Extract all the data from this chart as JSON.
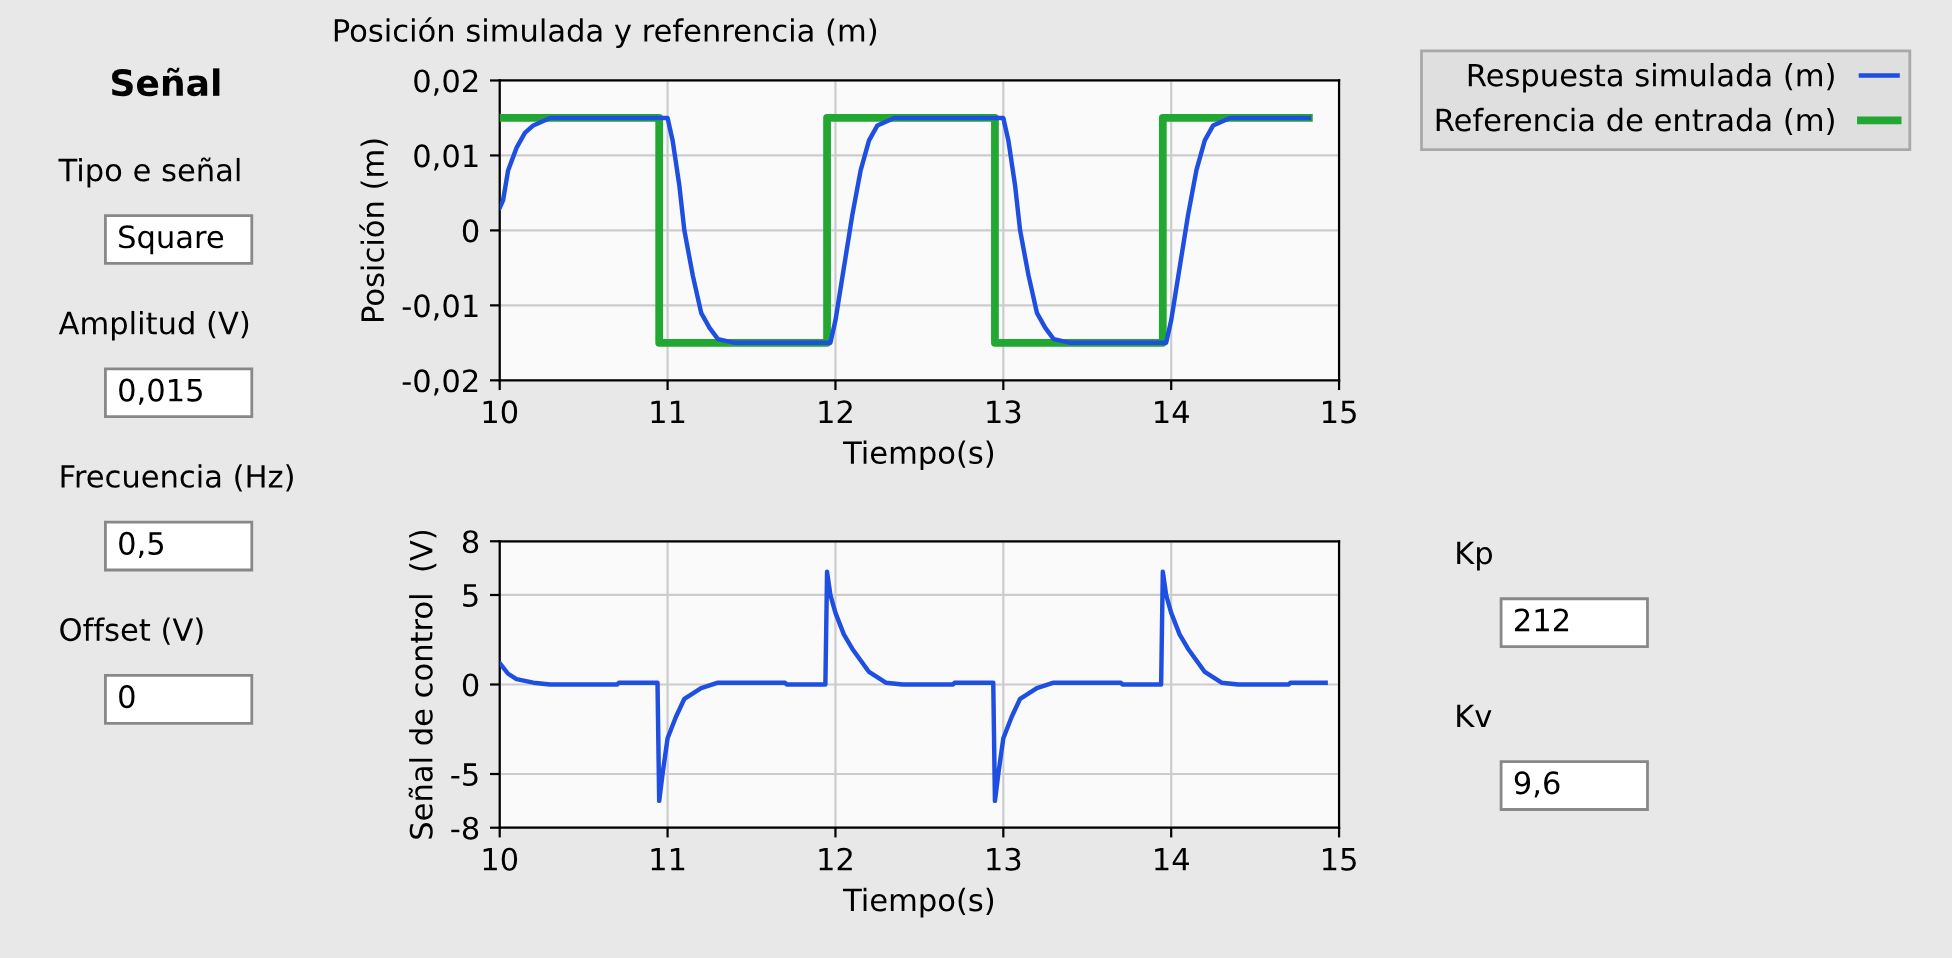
{
  "chart_data": [
    {
      "type": "line",
      "title": "Posición simulada y refenrencia (m)",
      "xlabel": "Tiempo(s)",
      "ylabel": "Posición (m)",
      "xlim": [
        10,
        15
      ],
      "xticks": [
        10,
        11,
        12,
        13,
        14,
        15
      ],
      "ylim": [
        -0.02,
        0.02
      ],
      "yticks": [
        {
          "value": -0.02,
          "label": "-0,02"
        },
        {
          "value": -0.01,
          "label": "-0,01"
        },
        {
          "value": 0,
          "label": "0"
        },
        {
          "value": 0.01,
          "label": "0,01"
        },
        {
          "value": 0.02,
          "label": "0,02"
        }
      ],
      "grid": true,
      "legend": "right",
      "series": [
        {
          "name": "Respuesta simulada (m)",
          "color": "#1f4fe0",
          "x": [
            10.0,
            10.02,
            10.05,
            10.1,
            10.15,
            10.2,
            10.3,
            11.0,
            11.03,
            11.07,
            11.1,
            11.15,
            11.2,
            11.25,
            11.3,
            11.4,
            11.97,
            12.0,
            12.05,
            12.1,
            12.15,
            12.2,
            12.25,
            12.35,
            13.0,
            13.03,
            13.07,
            13.1,
            13.15,
            13.2,
            13.25,
            13.3,
            13.4,
            13.97,
            14.0,
            14.05,
            14.1,
            14.15,
            14.2,
            14.25,
            14.35,
            14.82
          ],
          "values": [
            0.003,
            0.004,
            0.008,
            0.011,
            0.013,
            0.014,
            0.015,
            0.015,
            0.012,
            0.006,
            0.0,
            -0.006,
            -0.011,
            -0.013,
            -0.0145,
            -0.015,
            -0.015,
            -0.012,
            -0.005,
            0.002,
            0.008,
            0.012,
            0.014,
            0.015,
            0.015,
            0.012,
            0.006,
            0.0,
            -0.006,
            -0.011,
            -0.013,
            -0.0145,
            -0.015,
            -0.015,
            -0.012,
            -0.005,
            0.002,
            0.008,
            0.012,
            0.014,
            0.015,
            0.015
          ]
        },
        {
          "name": "Referencia de entrada (m)",
          "color": "#22a832",
          "x": [
            10.0,
            10.95,
            10.95,
            11.95,
            11.95,
            12.95,
            12.95,
            13.95,
            13.95,
            14.82
          ],
          "values": [
            0.015,
            0.015,
            -0.015,
            -0.015,
            0.015,
            0.015,
            -0.015,
            -0.015,
            0.015,
            0.015
          ]
        }
      ]
    },
    {
      "type": "line",
      "xlabel": "Tiempo(s)",
      "ylabel": "Señal de control  (V)",
      "xlim": [
        10,
        15
      ],
      "xticks": [
        10,
        11,
        12,
        13,
        14,
        15
      ],
      "ylim": [
        -8,
        8
      ],
      "yticks": [
        -8,
        -5,
        0,
        5,
        8
      ],
      "grid": true,
      "series": [
        {
          "color": "#1f4fe0",
          "x": [
            10.0,
            10.05,
            10.1,
            10.2,
            10.3,
            10.7,
            10.71,
            10.94,
            10.95,
            10.97,
            11.0,
            11.05,
            11.1,
            11.2,
            11.3,
            11.7,
            11.71,
            11.94,
            11.95,
            11.97,
            12.0,
            12.05,
            12.1,
            12.2,
            12.3,
            12.4,
            12.7,
            12.71,
            12.94,
            12.95,
            12.97,
            13.0,
            13.05,
            13.1,
            13.2,
            13.3,
            13.7,
            13.71,
            13.94,
            13.95,
            13.97,
            14.0,
            14.05,
            14.1,
            14.2,
            14.3,
            14.4,
            14.7,
            14.71,
            14.92
          ],
          "values": [
            1.2,
            0.6,
            0.3,
            0.1,
            0.0,
            0.0,
            0.1,
            0.1,
            -6.5,
            -5.0,
            -3.0,
            -1.8,
            -0.8,
            -0.2,
            0.1,
            0.1,
            0.0,
            0.0,
            6.3,
            5.0,
            4.0,
            2.8,
            2.0,
            0.7,
            0.1,
            0.0,
            0.0,
            0.1,
            0.1,
            -6.5,
            -5.0,
            -3.0,
            -1.8,
            -0.8,
            -0.2,
            0.1,
            0.1,
            0.0,
            0.0,
            6.3,
            5.0,
            4.0,
            2.8,
            2.0,
            0.7,
            0.1,
            0.0,
            0.0,
            0.1,
            0.1
          ]
        }
      ]
    },
    {
      "type": "other",
      "title": "Señal",
      "annotations": [
        "Tipo e señal",
        "Square",
        "Amplitud (V)",
        "0,015",
        "Frecuencia (Hz)",
        "0,5",
        "Offset (V)",
        "0"
      ]
    },
    {
      "type": "other",
      "annotations": [
        "Kp",
        "212",
        "Kv",
        "9,6"
      ]
    }
  ]
}
